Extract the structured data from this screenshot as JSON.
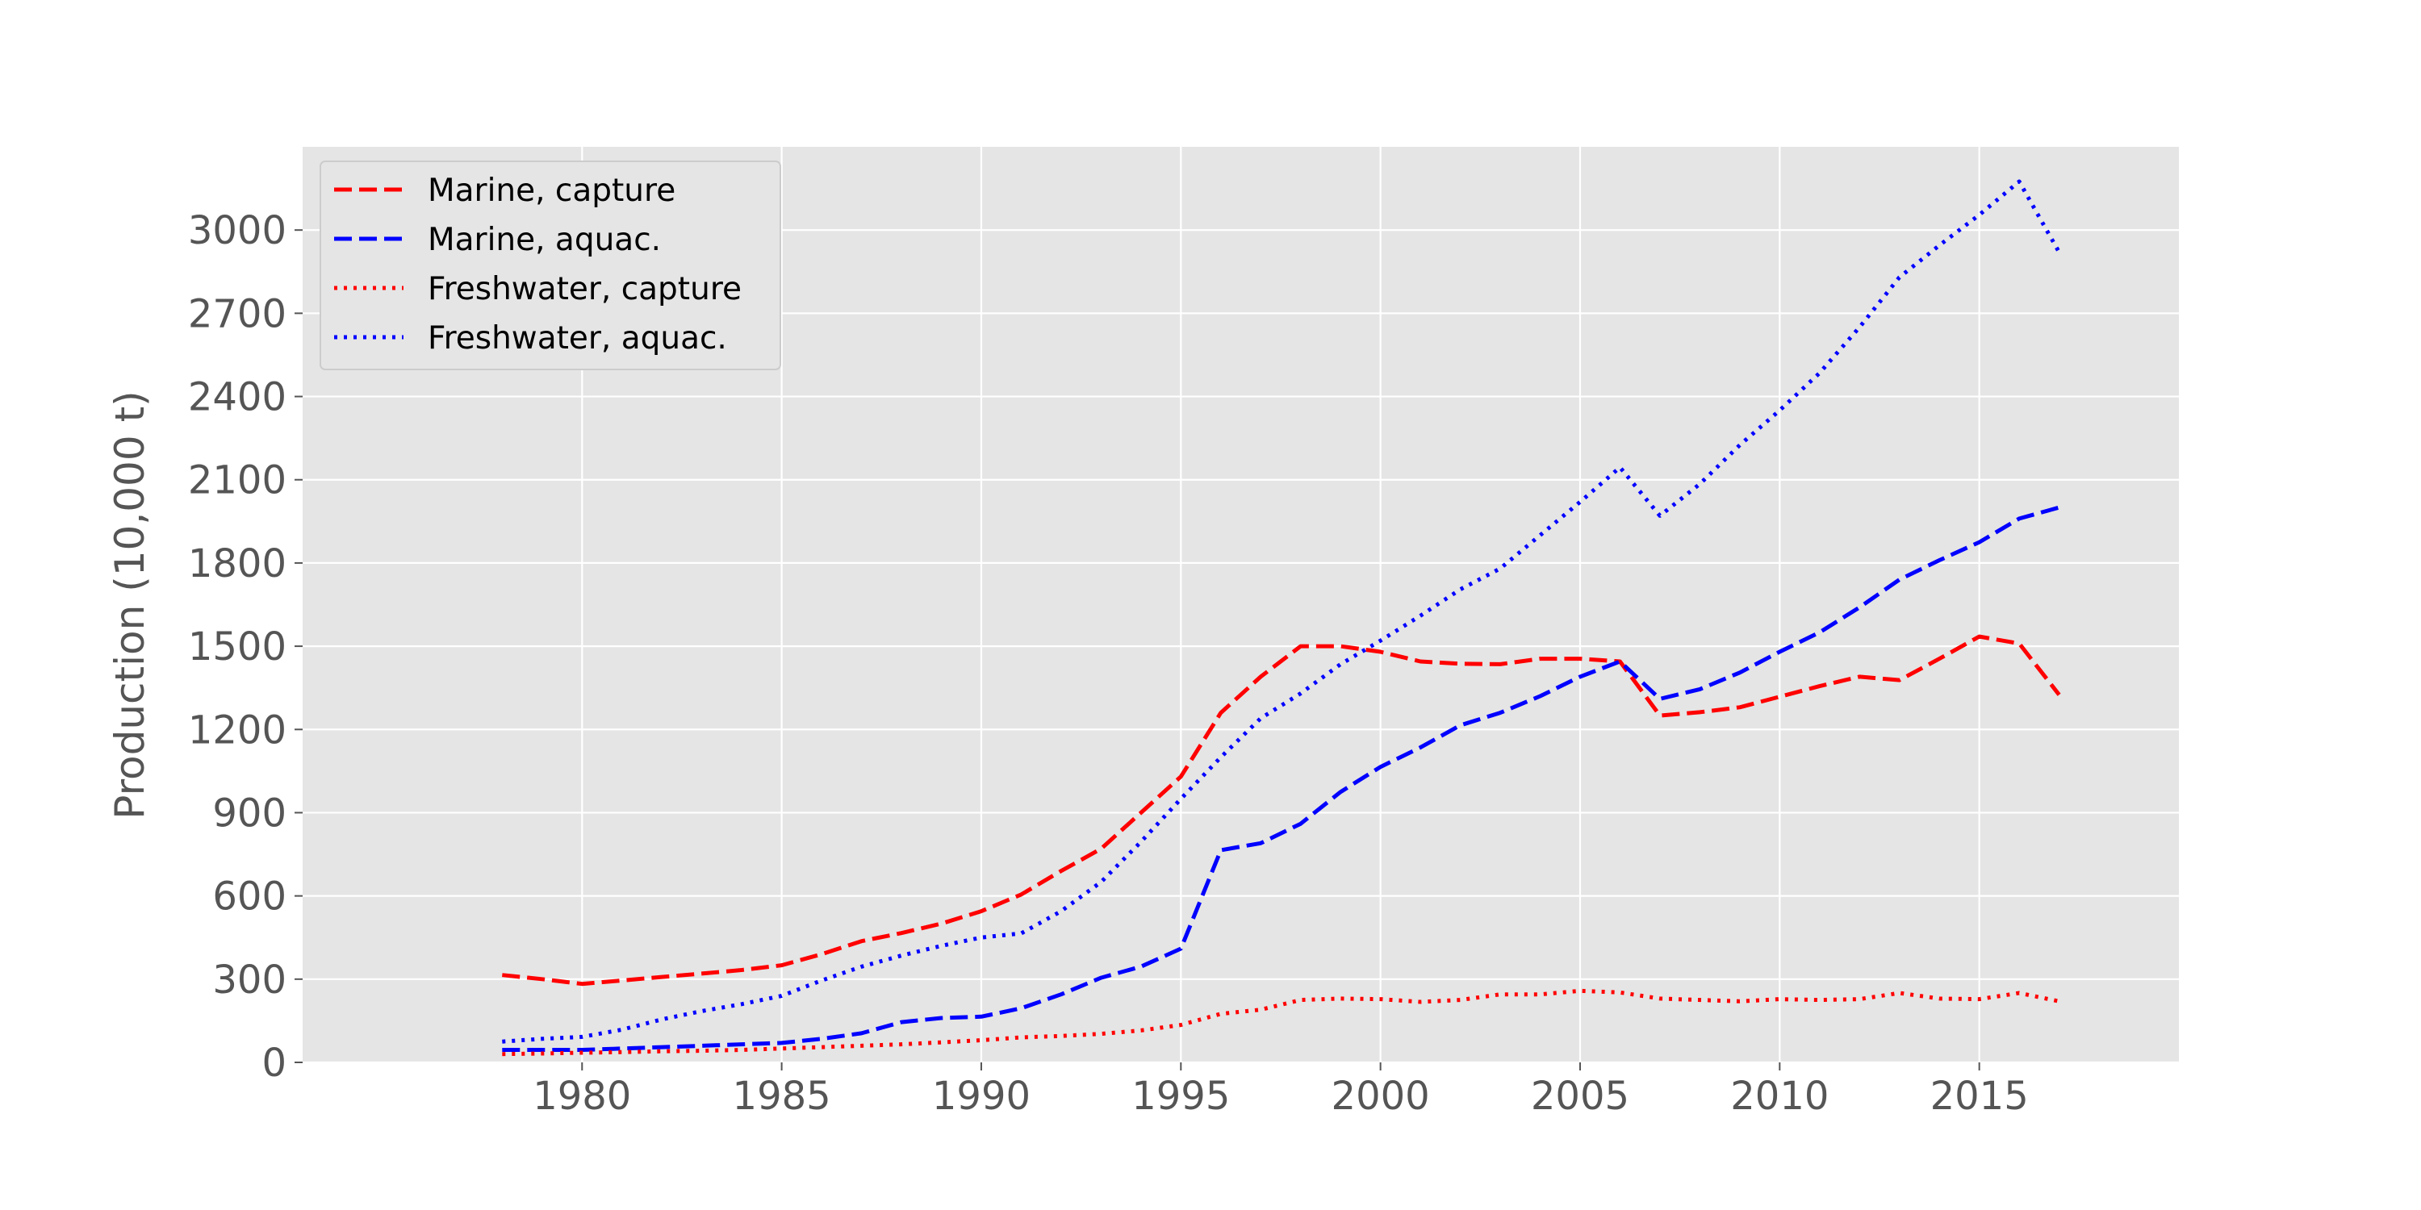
{
  "chart_data": {
    "type": "line",
    "title": "",
    "xlabel": "",
    "ylabel": "Production (10,000 t)",
    "xlim": [
      1973,
      2020
    ],
    "ylim": [
      0,
      3300
    ],
    "xticks": [
      1980,
      1985,
      1990,
      1995,
      2000,
      2005,
      2010,
      2015
    ],
    "yticks": [
      0,
      300,
      600,
      900,
      1200,
      1500,
      1800,
      2100,
      2400,
      2700,
      3000
    ],
    "grid": true,
    "legend_position": "upper-left",
    "x": [
      1978,
      1979,
      1980,
      1981,
      1982,
      1983,
      1984,
      1985,
      1986,
      1987,
      1988,
      1989,
      1990,
      1991,
      1992,
      1993,
      1994,
      1995,
      1996,
      1997,
      1998,
      1999,
      2000,
      2001,
      2002,
      2003,
      2004,
      2005,
      2006,
      2007,
      2008,
      2009,
      2010,
      2011,
      2012,
      2013,
      2014,
      2015,
      2016,
      2017
    ],
    "series": [
      {
        "name": "Marine, capture",
        "color": "#ff0000",
        "style": "dashed",
        "values": [
          315,
          300,
          283,
          295,
          308,
          320,
          333,
          350,
          390,
          437,
          466,
          500,
          545,
          605,
          690,
          770,
          900,
          1030,
          1260,
          1390,
          1500,
          1500,
          1480,
          1445,
          1437,
          1435,
          1455,
          1455,
          1445,
          1250,
          1262,
          1280,
          1318,
          1356,
          1390,
          1378,
          1455,
          1535,
          1510,
          1325
        ]
      },
      {
        "name": "Marine, aquac.",
        "color": "#0000ff",
        "style": "dashed",
        "values": [
          45,
          45,
          45,
          50,
          55,
          60,
          65,
          70,
          85,
          105,
          145,
          160,
          165,
          195,
          245,
          305,
          345,
          410,
          765,
          790,
          860,
          975,
          1065,
          1135,
          1215,
          1260,
          1320,
          1390,
          1445,
          1310,
          1345,
          1405,
          1480,
          1550,
          1640,
          1740,
          1810,
          1875,
          1960,
          2000
        ]
      },
      {
        "name": "Freshwater, capture",
        "color": "#ff0000",
        "style": "dotted",
        "values": [
          30,
          32,
          35,
          37,
          40,
          42,
          45,
          50,
          55,
          60,
          65,
          72,
          80,
          90,
          95,
          103,
          115,
          135,
          175,
          190,
          225,
          230,
          228,
          218,
          225,
          245,
          245,
          258,
          252,
          230,
          225,
          220,
          228,
          225,
          228,
          250,
          230,
          228,
          250,
          220
        ]
      },
      {
        "name": "Freshwater, aquac.",
        "color": "#0000ff",
        "style": "dotted",
        "values": [
          75,
          85,
          92,
          118,
          155,
          185,
          210,
          240,
          295,
          345,
          385,
          420,
          450,
          465,
          545,
          650,
          795,
          950,
          1100,
          1240,
          1330,
          1435,
          1520,
          1610,
          1705,
          1780,
          1900,
          2020,
          2145,
          1970,
          2085,
          2225,
          2350,
          2485,
          2650,
          2830,
          2945,
          3055,
          3175,
          2920
        ]
      }
    ]
  }
}
